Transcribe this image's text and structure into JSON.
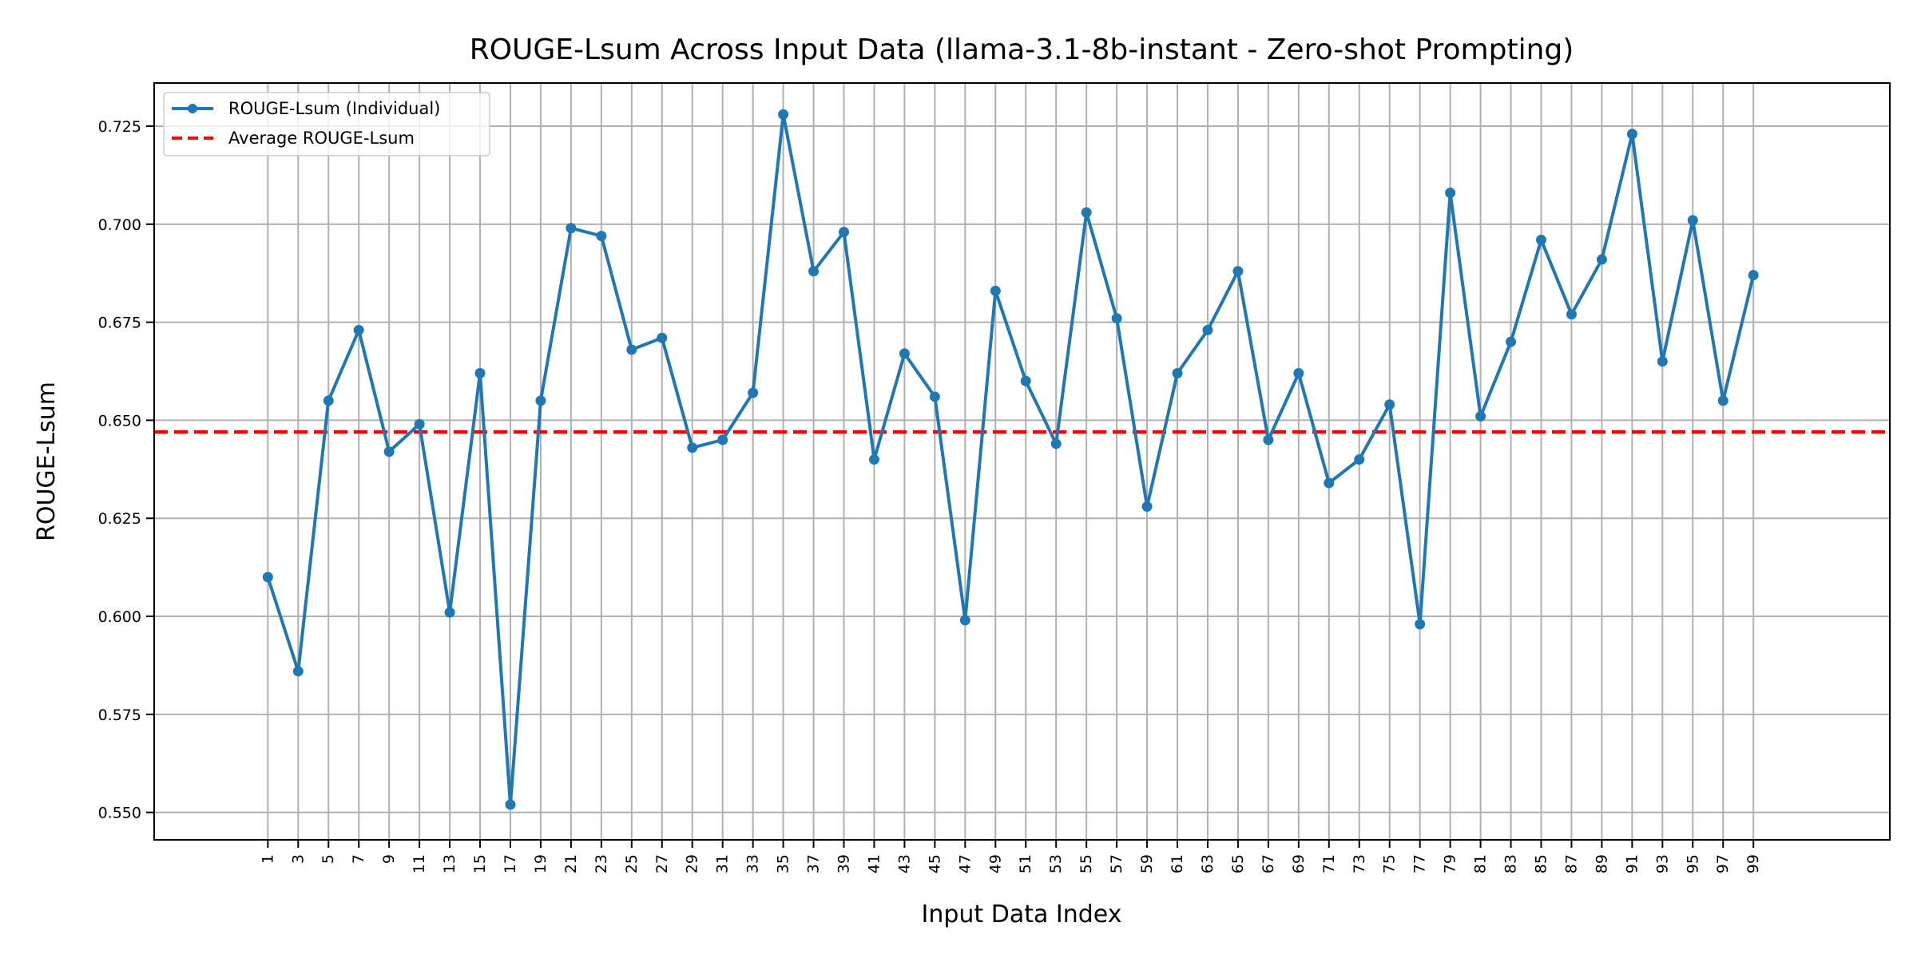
{
  "chart_data": {
    "type": "line",
    "title": "ROUGE-Lsum Across Input Data (llama-3.1-8b-instant - Zero-shot Prompting)",
    "xlabel": "Input Data Index",
    "ylabel": "ROUGE-Lsum",
    "ylim": [
      0.543,
      0.736
    ],
    "xlim": [
      -6.5,
      108.0
    ],
    "yticks": [
      "0.550",
      "0.575",
      "0.600",
      "0.625",
      "0.650",
      "0.675",
      "0.700",
      "0.725"
    ],
    "x": [
      1,
      3,
      5,
      7,
      9,
      11,
      13,
      15,
      17,
      19,
      21,
      23,
      25,
      27,
      29,
      31,
      33,
      35,
      37,
      39,
      41,
      43,
      45,
      47,
      49,
      51,
      53,
      55,
      57,
      59,
      61,
      63,
      65,
      67,
      69,
      71,
      73,
      75,
      77,
      79,
      81,
      83,
      85,
      87,
      89,
      91,
      93,
      95,
      97,
      99
    ],
    "series": [
      {
        "name": "ROUGE-Lsum (Individual)",
        "color": "#1f77b4",
        "values": [
          0.61,
          0.586,
          0.655,
          0.673,
          0.642,
          0.649,
          0.601,
          0.662,
          0.552,
          0.655,
          0.699,
          0.697,
          0.668,
          0.671,
          0.643,
          0.645,
          0.657,
          0.728,
          0.688,
          0.698,
          0.64,
          0.667,
          0.656,
          0.599,
          0.683,
          0.66,
          0.644,
          0.703,
          0.676,
          0.628,
          0.662,
          0.673,
          0.688,
          0.645,
          0.662,
          0.634,
          0.64,
          0.654,
          0.598,
          0.708,
          0.651,
          0.67,
          0.696,
          0.677,
          0.691,
          0.723,
          0.665,
          0.701,
          0.655,
          0.687
        ]
      }
    ],
    "average": {
      "name": "Average ROUGE-Lsum",
      "value": 0.647,
      "color": "#ff0000"
    },
    "grid": true,
    "legend": "top-left"
  }
}
